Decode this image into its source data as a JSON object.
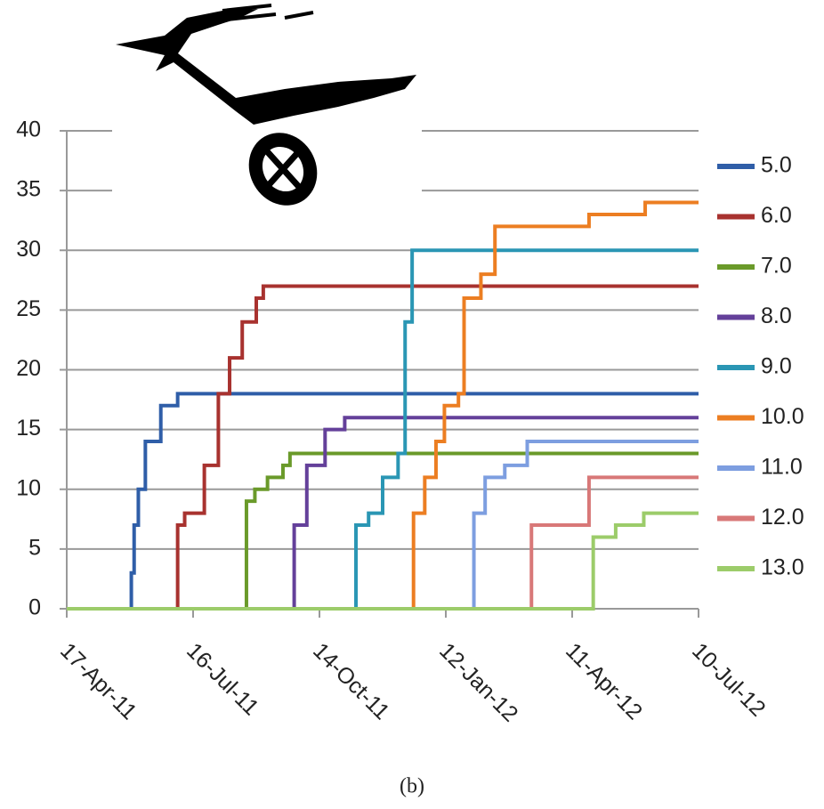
{
  "chart_data": {
    "type": "line",
    "drawstyle": "steps-post",
    "caption": "(b)",
    "grid": true,
    "legend": "right",
    "xlim": [
      "2011-04-17",
      "2012-07-10"
    ],
    "xticks": [
      {
        "value": "2011-04-17",
        "label": "17-Apr-11"
      },
      {
        "value": "2011-07-16",
        "label": "16-Jul-11"
      },
      {
        "value": "2011-10-14",
        "label": "14-Oct-11"
      },
      {
        "value": "2012-01-12",
        "label": "12-Jan-12"
      },
      {
        "value": "2012-04-11",
        "label": "11-Apr-12"
      },
      {
        "value": "2012-07-10",
        "label": "10-Jul-12"
      }
    ],
    "ylim": [
      0,
      40
    ],
    "yticks": [
      0,
      5,
      10,
      15,
      20,
      25,
      30,
      35,
      40
    ],
    "series": [
      {
        "name": "5.0",
        "color": "#2f5ea8",
        "x": [
          "2011-04-17",
          "2011-06-02",
          "2011-06-04",
          "2011-06-07",
          "2011-06-12",
          "2011-06-23",
          "2011-07-05",
          "2012-07-10"
        ],
        "values": [
          0,
          3,
          7,
          10,
          14,
          17,
          18,
          18
        ]
      },
      {
        "name": "6.0",
        "color": "#a8322f",
        "x": [
          "2011-04-17",
          "2011-07-05",
          "2011-07-10",
          "2011-07-24",
          "2011-08-03",
          "2011-08-11",
          "2011-08-20",
          "2011-08-30",
          "2011-09-04",
          "2012-07-10"
        ],
        "values": [
          0,
          7,
          8,
          12,
          18,
          21,
          24,
          26,
          27,
          27
        ]
      },
      {
        "name": "7.0",
        "color": "#6a9a2a",
        "x": [
          "2011-04-17",
          "2011-08-23",
          "2011-08-29",
          "2011-09-07",
          "2011-09-18",
          "2011-09-23",
          "2012-07-10"
        ],
        "values": [
          0,
          9,
          10,
          11,
          12,
          13,
          13
        ]
      },
      {
        "name": "8.0",
        "color": "#64409a",
        "x": [
          "2011-04-17",
          "2011-09-26",
          "2011-10-05",
          "2011-10-18",
          "2011-11-01",
          "2012-07-10"
        ],
        "values": [
          0,
          7,
          12,
          15,
          16,
          16
        ]
      },
      {
        "name": "9.0",
        "color": "#2a96b4",
        "x": [
          "2011-04-17",
          "2011-11-09",
          "2011-11-18",
          "2011-11-28",
          "2011-12-09",
          "2011-12-14",
          "2011-12-19",
          "2012-07-10"
        ],
        "values": [
          0,
          7,
          8,
          11,
          13,
          24,
          30,
          30
        ]
      },
      {
        "name": "10.0",
        "color": "#ec7e22",
        "x": [
          "2011-04-17",
          "2011-12-20",
          "2011-12-28",
          "2012-01-05",
          "2012-01-11",
          "2012-01-21",
          "2012-01-25",
          "2012-02-06",
          "2012-02-16",
          "2012-04-23",
          "2012-06-02",
          "2012-07-10"
        ],
        "values": [
          0,
          8,
          11,
          14,
          17,
          18,
          26,
          28,
          32,
          33,
          34,
          34
        ]
      },
      {
        "name": "11.0",
        "color": "#7d9ee0",
        "x": [
          "2011-04-17",
          "2012-02-01",
          "2012-02-09",
          "2012-02-23",
          "2012-03-10",
          "2012-07-10"
        ],
        "values": [
          0,
          8,
          11,
          12,
          14,
          14
        ]
      },
      {
        "name": "12.0",
        "color": "#d87878",
        "x": [
          "2011-04-17",
          "2012-03-13",
          "2012-04-23",
          "2012-07-10"
        ],
        "values": [
          0,
          7,
          11,
          11
        ]
      },
      {
        "name": "13.0",
        "color": "#9ccc6a",
        "x": [
          "2011-04-17",
          "2012-04-26",
          "2012-05-12",
          "2012-06-01",
          "2012-07-10"
        ],
        "values": [
          0,
          6,
          7,
          8,
          8
        ]
      }
    ]
  }
}
